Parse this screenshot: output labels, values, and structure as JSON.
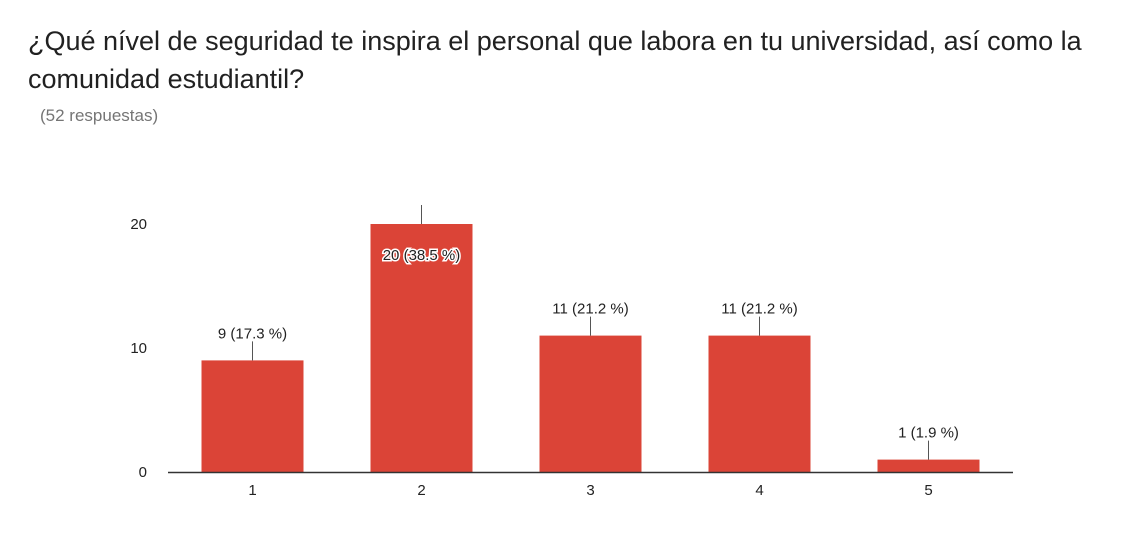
{
  "header": {
    "question": "¿Qué nível de seguridad te inspira el personal que labora en tu universidad, así como la comunidad estudiantil?",
    "responses": "(52 respuestas)"
  },
  "colors": {
    "bar": "#DB4437",
    "axis": "#333333",
    "leader": "#555555"
  },
  "chart_data": {
    "type": "bar",
    "title": "¿Qué nível de seguridad te inspira el personal que labora en tu universidad, así como la comunidad estudiantil?",
    "categories": [
      "1",
      "2",
      "3",
      "4",
      "5"
    ],
    "values": [
      9,
      20,
      11,
      11,
      1
    ],
    "data_labels": [
      "9 (17.3 %)",
      "20 (38.5 %)",
      "11 (21.2 %)",
      "11 (21.2 %)",
      "1 (1.9 %)"
    ],
    "yticks": [
      0,
      10,
      20
    ],
    "ylim": [
      0,
      20
    ],
    "xlabel": "",
    "ylabel": "",
    "grid": false,
    "legend": "none"
  }
}
